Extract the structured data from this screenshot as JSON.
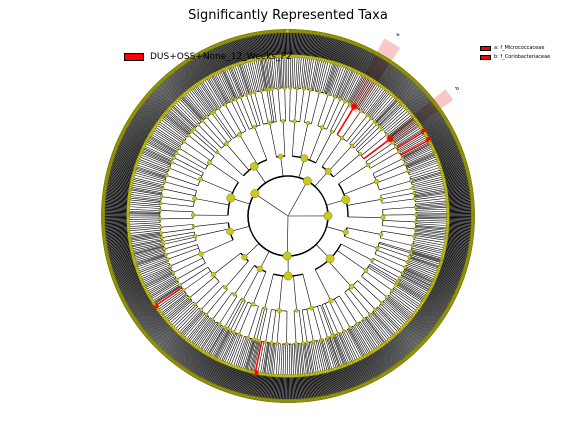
{
  "title": "Significantly Represented Taxa",
  "legend": {
    "group_label": "DUS+OSS+None_12_Weeks_P2",
    "group_color": "#ff0000"
  },
  "taxa_legend": [
    {
      "letter": "a",
      "name": "a: f_Micrococcaceae"
    },
    {
      "letter": "b",
      "name": "b: f_Coriobacteriaceae"
    }
  ],
  "colors": {
    "node_fill": "#c8c81e",
    "node_stroke": "#6b6b00",
    "highlight": "#ff0000",
    "shade": "#f4a9a9"
  }
}
